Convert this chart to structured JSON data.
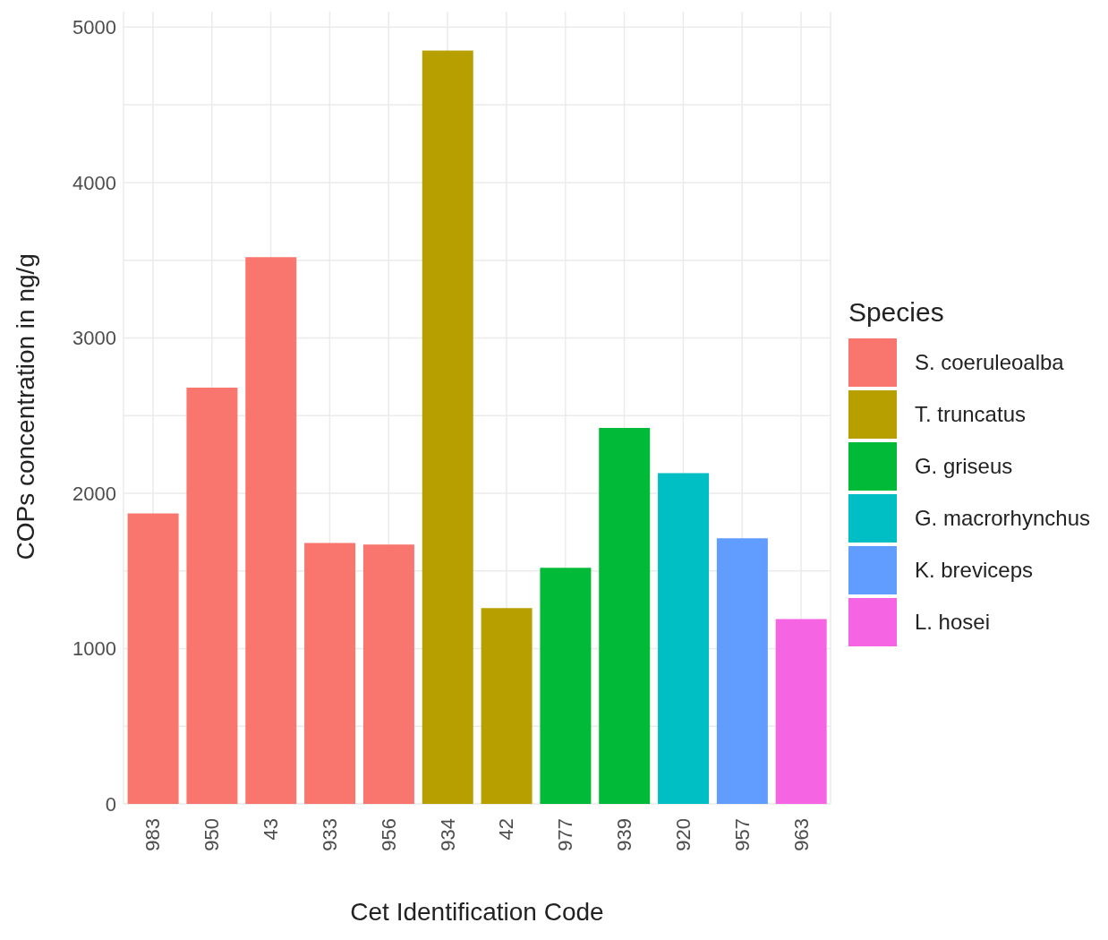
{
  "chart_data": {
    "type": "bar",
    "stacked": true,
    "xlabel": "Cet Identification Code",
    "ylabel": "COPs concentration in ng/g",
    "legend_title": "Species",
    "legend": "right",
    "grid": true,
    "categories": [
      "983",
      "950",
      "43",
      "933",
      "956",
      "934",
      "42",
      "977",
      "939",
      "920",
      "957",
      "963"
    ],
    "series": [
      {
        "name": "S. coeruleoalba",
        "color": "#f8766d",
        "values": [
          1870,
          2680,
          3520,
          1680,
          1670,
          null,
          null,
          null,
          null,
          null,
          null,
          null
        ]
      },
      {
        "name": "T. truncatus",
        "color": "#b79f00",
        "values": [
          null,
          null,
          null,
          null,
          null,
          4850,
          1260,
          null,
          null,
          null,
          null,
          null
        ]
      },
      {
        "name": "G. griseus",
        "color": "#00ba38",
        "values": [
          null,
          null,
          null,
          null,
          null,
          null,
          null,
          1520,
          2420,
          null,
          null,
          null
        ]
      },
      {
        "name": "G. macrorhynchus",
        "color": "#00bfc4",
        "values": [
          null,
          null,
          null,
          null,
          null,
          null,
          null,
          null,
          null,
          2130,
          null,
          null
        ]
      },
      {
        "name": "K. breviceps",
        "color": "#619cff",
        "values": [
          null,
          null,
          null,
          null,
          null,
          null,
          null,
          null,
          null,
          null,
          1710,
          null
        ]
      },
      {
        "name": "L. hosei",
        "color": "#f564e3",
        "values": [
          null,
          null,
          null,
          null,
          null,
          null,
          null,
          null,
          null,
          null,
          null,
          1190
        ]
      }
    ],
    "ylim": [
      0,
      5100
    ],
    "yticks": [
      0,
      {
        "value": 500,
        "label": null
      },
      1000,
      {
        "value": 1500,
        "label": null
      },
      2000,
      {
        "value": 2500,
        "label": null
      },
      3000,
      {
        "value": 3500,
        "label": null
      },
      4000,
      {
        "value": 4500,
        "label": null
      },
      5000
    ]
  }
}
